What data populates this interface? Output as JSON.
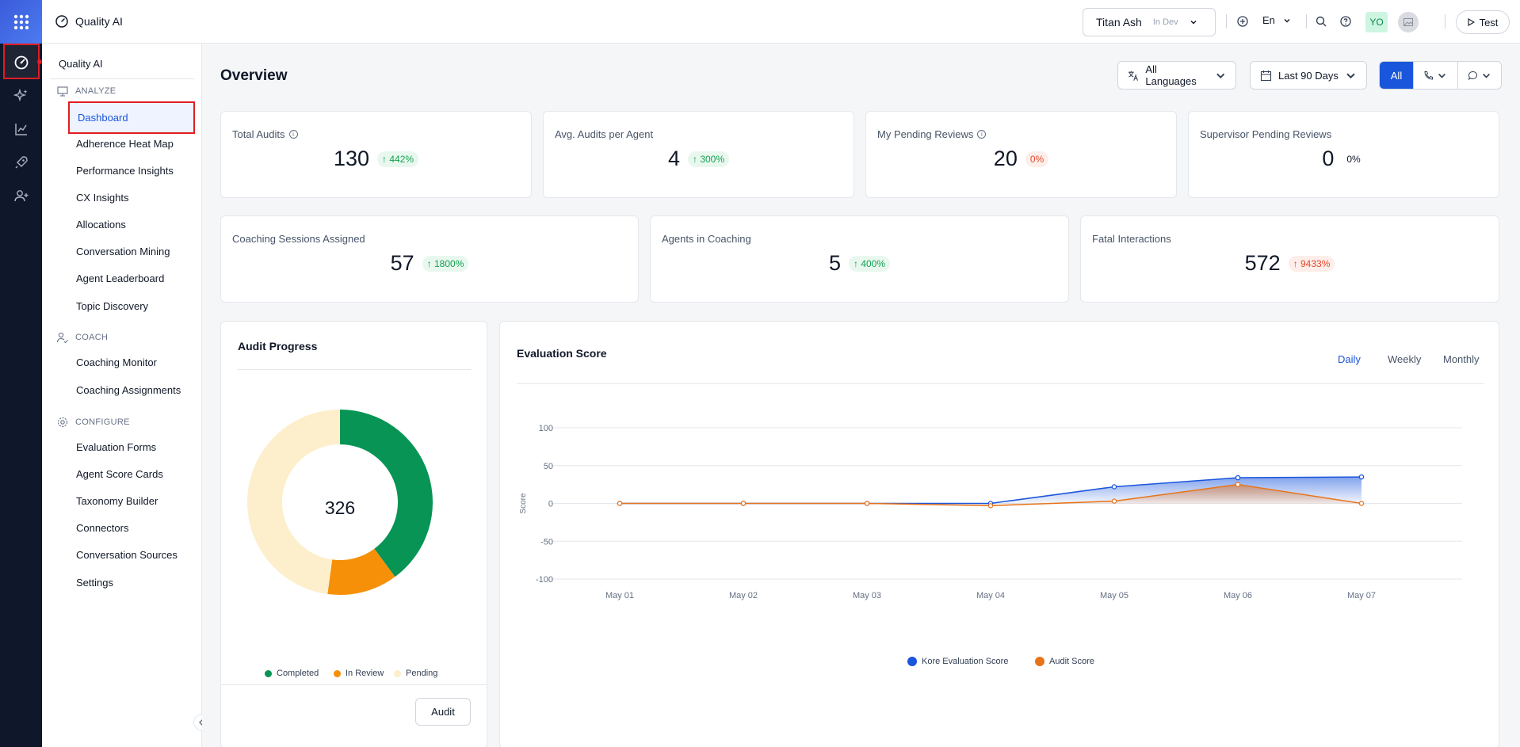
{
  "app": {
    "title": "Quality AI"
  },
  "header": {
    "tenant_name": "Titan Ash",
    "tenant_env": "In Dev",
    "language": "En",
    "avatar_initials": "YO",
    "test_label": "Test"
  },
  "sidebar": {
    "app_title": "Quality AI",
    "sections": [
      {
        "label": "ANALYZE",
        "icon": "presentation-icon",
        "items": [
          "Dashboard",
          "Adherence Heat Map",
          "Performance Insights",
          "CX Insights",
          "Allocations",
          "Conversation Mining",
          "Agent Leaderboard",
          "Topic Discovery"
        ]
      },
      {
        "label": "COACH",
        "icon": "user-check-icon",
        "items": [
          "Coaching Monitor",
          "Coaching Assignments"
        ]
      },
      {
        "label": "CONFIGURE",
        "icon": "gear-icon",
        "items": [
          "Evaluation Forms",
          "Agent Score Cards",
          "Taxonomy Builder",
          "Connectors",
          "Conversation Sources",
          "Settings"
        ]
      }
    ],
    "active_item": "Dashboard"
  },
  "overview": {
    "title": "Overview",
    "filters": {
      "language": "All Languages",
      "date_range": "Last 90 Days",
      "channel_all": "All"
    },
    "kpis_row1": [
      {
        "label": "Total Audits",
        "value": "130",
        "delta": "↑ 442%",
        "tone": "up",
        "info": true
      },
      {
        "label": "Avg. Audits per Agent",
        "value": "4",
        "delta": "↑ 300%",
        "tone": "up",
        "info": false
      },
      {
        "label": "My Pending Reviews",
        "value": "20",
        "delta": "0%",
        "tone": "red",
        "info": true
      },
      {
        "label": "Supervisor Pending Reviews",
        "value": "0",
        "delta": "0%",
        "tone": "neutral",
        "info": false
      }
    ],
    "kpis_row2": [
      {
        "label": "Coaching Sessions Assigned",
        "value": "57",
        "delta": "↑ 1800%",
        "tone": "up"
      },
      {
        "label": "Agents in Coaching",
        "value": "5",
        "delta": "↑ 400%",
        "tone": "up"
      },
      {
        "label": "Fatal Interactions",
        "value": "572",
        "delta": "↑ 9433%",
        "tone": "red"
      }
    ]
  },
  "audit_progress": {
    "title": "Audit Progress",
    "total": "326",
    "legend": [
      {
        "label": "Completed",
        "color": "#079455"
      },
      {
        "label": "In Review",
        "color": "#f79009"
      },
      {
        "label": "Pending",
        "color": "#fdefcc"
      }
    ],
    "button": "Audit"
  },
  "evaluation": {
    "title": "Evaluation Score",
    "tabs": [
      "Daily",
      "Weekly",
      "Monthly"
    ],
    "active_tab": "Daily"
  },
  "chart_data": [
    {
      "type": "pie",
      "title": "Audit Progress",
      "categories": [
        "Completed",
        "In Review",
        "Pending"
      ],
      "values": [
        130,
        40,
        156
      ],
      "colors": [
        "#079455",
        "#f79009",
        "#fdefcc"
      ],
      "center_label": "326"
    },
    {
      "type": "line",
      "title": "Evaluation Score",
      "ylabel": "Score",
      "x": [
        "May 01",
        "May 02",
        "May 03",
        "May 04",
        "May 05",
        "May 06",
        "May 07"
      ],
      "ylim": [
        -100,
        100
      ],
      "yticks": [
        100,
        50,
        0,
        -50,
        -100
      ],
      "grid": true,
      "legend_position": "bottom",
      "series": [
        {
          "name": "Kore Evaluation Score",
          "color": "#1a56db",
          "values": [
            0,
            0,
            0,
            0,
            22,
            34,
            35
          ]
        },
        {
          "name": "Audit Score",
          "color": "#e8741a",
          "values": [
            0,
            0,
            0,
            -3,
            3,
            25,
            0
          ]
        }
      ]
    }
  ]
}
